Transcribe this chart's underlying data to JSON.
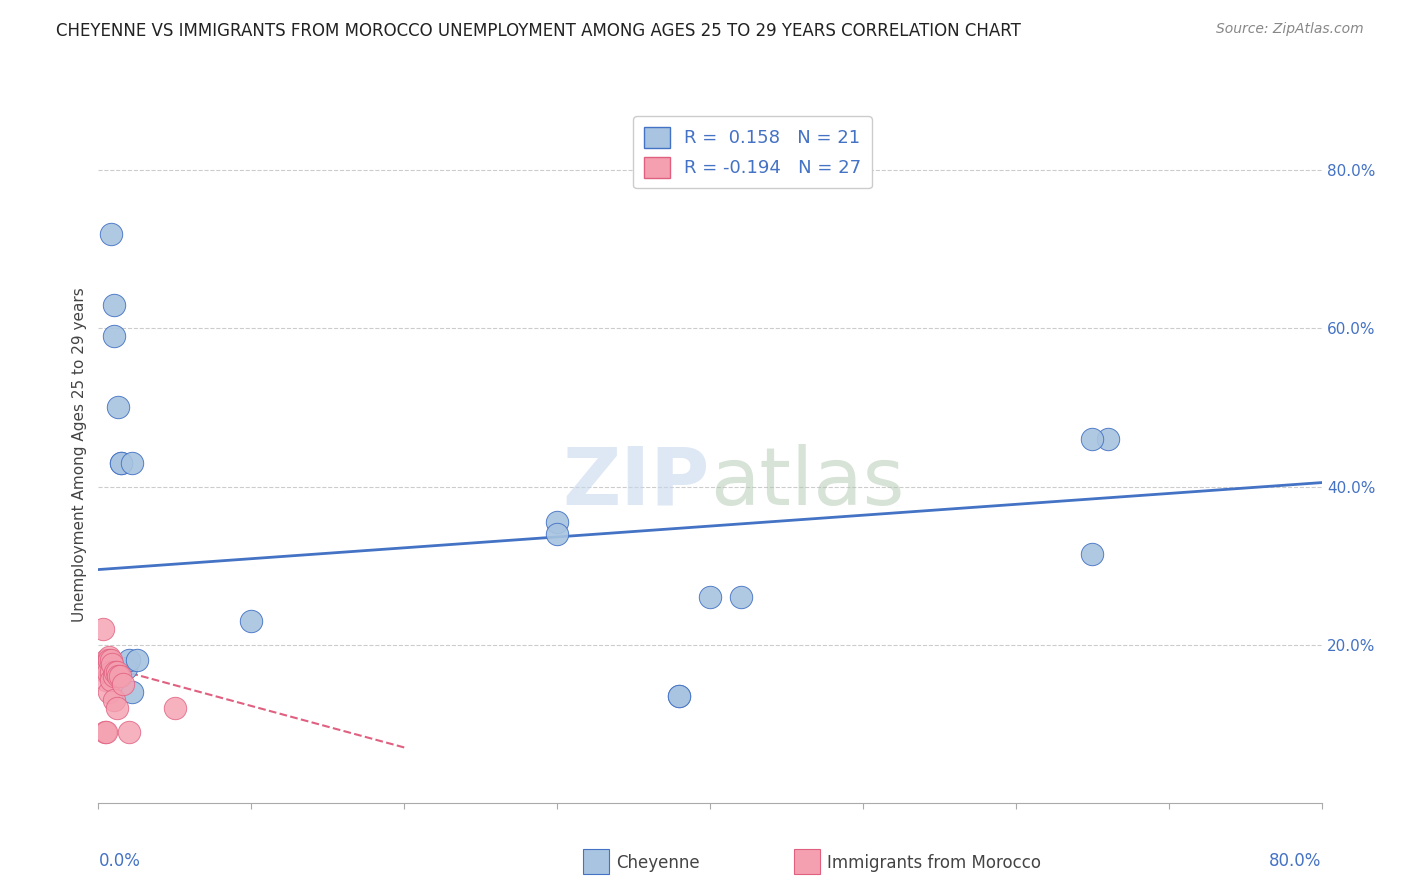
{
  "title": "CHEYENNE VS IMMIGRANTS FROM MOROCCO UNEMPLOYMENT AMONG AGES 25 TO 29 YEARS CORRELATION CHART",
  "source": "Source: ZipAtlas.com",
  "ylabel": "Unemployment Among Ages 25 to 29 years",
  "ytick_labels": [
    "20.0%",
    "40.0%",
    "60.0%",
    "80.0%"
  ],
  "ytick_values": [
    0.2,
    0.4,
    0.6,
    0.8
  ],
  "xlim": [
    0,
    0.8
  ],
  "ylim": [
    0,
    0.88
  ],
  "legend_label1": "Cheyenne",
  "legend_label2": "Immigrants from Morocco",
  "r1": 0.158,
  "n1": 21,
  "r2": -0.194,
  "n2": 27,
  "color_blue": "#a8c4e0",
  "color_pink": "#f4a0b0",
  "color_line_blue": "#4472c4",
  "color_line_pink": "#e06080",
  "watermark_zip": "ZIP",
  "watermark_atlas": "atlas",
  "cheyenne_x": [
    0.008,
    0.01,
    0.01,
    0.013,
    0.015,
    0.015,
    0.018,
    0.02,
    0.022,
    0.022,
    0.025,
    0.3,
    0.38,
    0.42,
    0.65,
    0.66,
    0.1,
    0.3,
    0.4,
    0.65,
    0.38
  ],
  "cheyenne_y": [
    0.72,
    0.63,
    0.59,
    0.5,
    0.43,
    0.43,
    0.17,
    0.18,
    0.14,
    0.43,
    0.18,
    0.355,
    0.135,
    0.26,
    0.315,
    0.46,
    0.23,
    0.34,
    0.26,
    0.46,
    0.135
  ],
  "morocco_x": [
    0.003,
    0.004,
    0.005,
    0.005,
    0.005,
    0.005,
    0.005,
    0.005,
    0.006,
    0.006,
    0.007,
    0.007,
    0.007,
    0.008,
    0.008,
    0.008,
    0.009,
    0.01,
    0.01,
    0.011,
    0.012,
    0.012,
    0.013,
    0.014,
    0.016,
    0.02,
    0.05
  ],
  "morocco_y": [
    0.22,
    0.09,
    0.18,
    0.175,
    0.17,
    0.165,
    0.155,
    0.09,
    0.17,
    0.165,
    0.185,
    0.18,
    0.14,
    0.18,
    0.165,
    0.155,
    0.175,
    0.16,
    0.13,
    0.165,
    0.165,
    0.12,
    0.16,
    0.16,
    0.15,
    0.09,
    0.12
  ],
  "blue_trend_x": [
    0.0,
    0.8
  ],
  "blue_trend_y": [
    0.295,
    0.405
  ],
  "pink_trend_x": [
    0.0,
    0.2
  ],
  "pink_trend_y": [
    0.175,
    0.07
  ]
}
